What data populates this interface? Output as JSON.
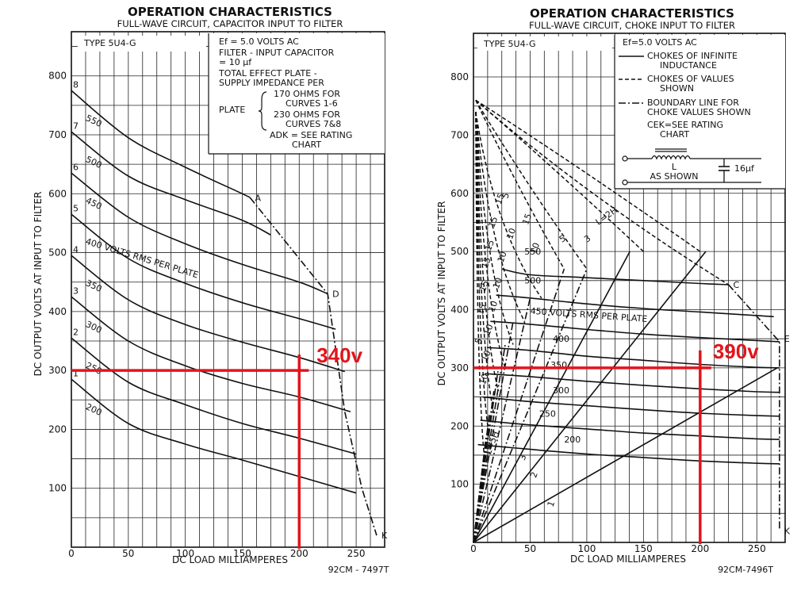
{
  "chart_data": [
    {
      "type": "line",
      "title": "OPERATION CHARACTERISTICS",
      "subtitle": "FULL-WAVE CIRCUIT, CAPACITOR INPUT TO FILTER",
      "xlabel": "DC LOAD MILLIAMPERES",
      "ylabel": "DC OUTPUT VOLTS AT INPUT TO FILTER",
      "xlim": [
        0,
        275
      ],
      "ylim": [
        0,
        875
      ],
      "xticks": [
        0,
        50,
        100,
        150,
        200,
        250
      ],
      "yticks": [
        100,
        200,
        300,
        400,
        500,
        600,
        700,
        800
      ],
      "code": "92CM - 7497T",
      "type_label": "TYPE 5U4-G",
      "notes": [
        "Ef = 5.0 VOLTS AC",
        "FILTER - INPUT CAPACITOR",
        "= 10 µf",
        "TOTAL EFFECT PLATE -",
        "SUPPLY IMPEDANCE PER",
        "PLATE",
        "170 OHMS FOR",
        "CURVES 1-6",
        "230 OHMS FOR",
        "CURVES 7&8",
        "ADK = SEE RATING",
        "CHART"
      ],
      "series": [
        {
          "name": "1",
          "label": "200",
          "x": [
            0,
            50,
            100,
            150,
            200,
            250
          ],
          "y": [
            285,
            210,
            175,
            148,
            120,
            92
          ]
        },
        {
          "name": "2",
          "label": "250",
          "x": [
            0,
            50,
            100,
            150,
            200,
            250
          ],
          "y": [
            355,
            280,
            242,
            210,
            185,
            158
          ]
        },
        {
          "name": "3",
          "label": "300",
          "x": [
            0,
            50,
            100,
            150,
            200,
            245
          ],
          "y": [
            425,
            350,
            308,
            278,
            255,
            230
          ]
        },
        {
          "name": "4",
          "label": "350",
          "x": [
            0,
            50,
            100,
            150,
            200,
            240
          ],
          "y": [
            495,
            420,
            378,
            348,
            322,
            298
          ]
        },
        {
          "name": "5",
          "label": "400 VOLTS RMS PER PLATE",
          "x": [
            0,
            50,
            100,
            150,
            200,
            232
          ],
          "y": [
            565,
            490,
            448,
            415,
            388,
            370
          ]
        },
        {
          "name": "6",
          "label": "450",
          "x": [
            0,
            50,
            100,
            150,
            200,
            225
          ],
          "y": [
            635,
            560,
            515,
            480,
            450,
            430
          ]
        },
        {
          "name": "7",
          "label": "500",
          "x": [
            0,
            50,
            100,
            150,
            175
          ],
          "y": [
            705,
            630,
            590,
            555,
            530
          ]
        },
        {
          "name": "8",
          "label": "550",
          "x": [
            0,
            50,
            100,
            150,
            157
          ],
          "y": [
            775,
            695,
            645,
            600,
            593
          ]
        }
      ],
      "boundary": {
        "points": [
          "A",
          "D",
          "K"
        ],
        "x": [
          157,
          225,
          268
        ],
        "y": [
          593,
          430,
          20
        ]
      },
      "annotation": {
        "label": "340v",
        "x": 200,
        "y": 300
      }
    },
    {
      "type": "line",
      "title": "OPERATION CHARACTERISTICS",
      "subtitle": "FULL-WAVE CIRCUIT, CHOKE INPUT TO FILTER",
      "xlabel": "DC LOAD MILLIAMPERES",
      "ylabel": "DC OUTPUT VOLTS AT INPUT TO FILTER",
      "xlim": [
        0,
        275
      ],
      "ylim": [
        0,
        875
      ],
      "xticks": [
        0,
        50,
        100,
        150,
        200,
        250
      ],
      "yticks": [
        100,
        200,
        300,
        400,
        500,
        600,
        700,
        800
      ],
      "code": "92CM-7496T",
      "type_label": "TYPE 5U4-G",
      "legend": [
        "Ef=5.0 VOLTS AC",
        "CHOKES OF INFINITE",
        "INDUCTANCE",
        "CHOKES OF VALUES",
        "SHOWN",
        "BOUNDARY LINE FOR",
        "CHOKE VALUES SHOWN",
        "CEK=SEE RATING",
        "CHART"
      ],
      "circuit": {
        "inductor": "L",
        "inductor_note": "AS SHOWN",
        "capacitor": "16µf"
      },
      "series": [
        {
          "name": "550",
          "x": [
            25,
            50,
            100,
            150,
            200,
            225
          ],
          "y": [
            470,
            460,
            455,
            450,
            445,
            443
          ]
        },
        {
          "name": "500",
          "x": [
            20,
            50,
            100,
            150,
            200,
            250,
            265
          ],
          "y": [
            425,
            420,
            410,
            402,
            396,
            390,
            388
          ]
        },
        {
          "name": "450 VOLTS RMS PER PLATE",
          "x": [
            15,
            50,
            100,
            150,
            200,
            250,
            270
          ],
          "y": [
            380,
            375,
            366,
            358,
            352,
            347,
            345
          ]
        },
        {
          "name": "400",
          "x": [
            12,
            50,
            100,
            150,
            200,
            250,
            270
          ],
          "y": [
            335,
            330,
            320,
            313,
            306,
            301,
            300
          ]
        },
        {
          "name": "350",
          "x": [
            10,
            50,
            100,
            150,
            200,
            250,
            270
          ],
          "y": [
            290,
            285,
            277,
            270,
            264,
            259,
            258
          ]
        },
        {
          "name": "300",
          "x": [
            8,
            50,
            100,
            150,
            200,
            250,
            270
          ],
          "y": [
            250,
            242,
            235,
            228,
            222,
            218,
            217
          ]
        },
        {
          "name": "250",
          "x": [
            6,
            50,
            100,
            150,
            200,
            250,
            270
          ],
          "y": [
            210,
            202,
            195,
            188,
            183,
            178,
            177
          ]
        },
        {
          "name": "200",
          "x": [
            4,
            50,
            100,
            150,
            200,
            250,
            270
          ],
          "y": [
            168,
            160,
            152,
            146,
            140,
            136,
            135
          ]
        }
      ],
      "choke_labels": [
        "L=2H",
        "3",
        "5",
        "10",
        "15",
        "5",
        "10",
        "15",
        "10",
        "15",
        "10",
        "15",
        "10",
        "15",
        "10",
        "15",
        "10",
        "15",
        "10",
        "5",
        "L=5H",
        "3",
        "2",
        "1"
      ],
      "boundary": {
        "points": [
          "C",
          "E",
          "K"
        ],
        "x": [
          225,
          270,
          270
        ],
        "y": [
          443,
          345,
          20
        ]
      },
      "annotation": {
        "label": "390v",
        "x": 200,
        "y": 300
      }
    }
  ]
}
